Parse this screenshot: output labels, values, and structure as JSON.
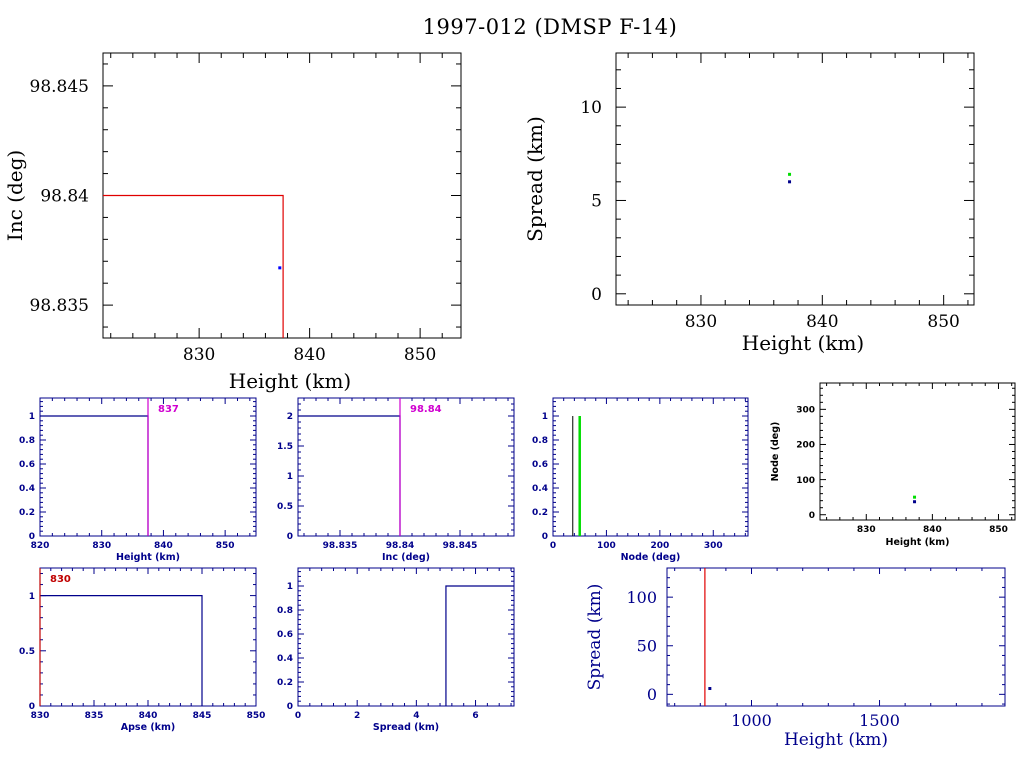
{
  "title": "1997-012 (DMSP F-14)",
  "colors": {
    "black": "#000000",
    "navy": "#00008b",
    "red": "#e00000",
    "darkred": "#c00000",
    "magenta": "#d000d0",
    "green": "#00dd00",
    "blue": "#0000ff"
  },
  "chart_data": [
    {
      "id": "p1",
      "type": "scatter",
      "xlabel": "Height (km)",
      "ylabel": "Inc (deg)",
      "xlim": [
        821.3,
        853.7
      ],
      "ylim": [
        98.8335,
        98.8465
      ],
      "xticks": [
        830,
        840,
        850
      ],
      "yticks": [
        98.835,
        98.84,
        98.845
      ],
      "yticklabels": [
        "98.835",
        "98.84",
        "98.845"
      ],
      "points": [
        {
          "x": 837.3,
          "y": 98.8367,
          "color": "blue"
        }
      ],
      "lines": [
        {
          "x": [
            821.3,
            837.6,
            837.6
          ],
          "y": [
            98.84,
            98.84,
            98.8335
          ],
          "color": "red"
        }
      ]
    },
    {
      "id": "p2",
      "type": "scatter",
      "xlabel": "Height (km)",
      "ylabel": "Spread (km)",
      "xlim": [
        823,
        852.5
      ],
      "ylim": [
        -0.6,
        12.9
      ],
      "xticks": [
        830,
        840,
        850
      ],
      "yticks": [
        0,
        5,
        10
      ],
      "points": [
        {
          "x": 837.3,
          "y": 6.4,
          "color": "green"
        },
        {
          "x": 837.3,
          "y": 6.0,
          "color": "navy"
        }
      ]
    },
    {
      "id": "p3",
      "type": "histogram",
      "xlabel": "Height (km)",
      "xlim": [
        820,
        855
      ],
      "ylim": [
        0,
        1.15
      ],
      "xticks": [
        820,
        830,
        840,
        850
      ],
      "yticks": [
        0,
        0.2,
        0.4,
        0.6,
        0.8,
        1
      ],
      "yticklabels": [
        "0",
        "0.2",
        "0.4",
        "0.6",
        "0.8",
        "1"
      ],
      "steps": [
        {
          "x": [
            820,
            837.5,
            837.5
          ],
          "y": [
            1,
            1,
            0
          ],
          "color": "navy"
        }
      ],
      "markers": [
        {
          "x": 837.5,
          "color": "magenta"
        }
      ],
      "annotation": {
        "text": "837",
        "color": "magenta"
      }
    },
    {
      "id": "p4",
      "type": "histogram",
      "xlabel": "Inc (deg)",
      "xlim": [
        98.8315,
        98.8495
      ],
      "ylim": [
        0,
        2.3
      ],
      "xticks": [
        98.835,
        98.84,
        98.845
      ],
      "yticks": [
        0,
        0.5,
        1,
        1.5,
        2
      ],
      "xticklabels": [
        "98.835",
        "98.84",
        "98.845"
      ],
      "yticklabels": [
        "0",
        "0.5",
        "1",
        "1.5",
        "2"
      ],
      "steps": [
        {
          "x": [
            98.8315,
            98.84,
            98.84
          ],
          "y": [
            2,
            2,
            0
          ],
          "color": "navy"
        }
      ],
      "markers": [
        {
          "x": 98.84,
          "color": "magenta"
        }
      ],
      "annotation": {
        "text": "98.84",
        "color": "magenta"
      }
    },
    {
      "id": "p5",
      "type": "histogram",
      "xlabel": "Node (deg)",
      "xlim": [
        0,
        365
      ],
      "ylim": [
        0,
        1.15
      ],
      "xticks": [
        0,
        100,
        200,
        300
      ],
      "yticks": [
        0,
        0.2,
        0.4,
        0.6,
        0.8,
        1
      ],
      "yticklabels": [
        "0",
        "0.2",
        "0.4",
        "0.6",
        "0.8",
        "1"
      ],
      "bars": [
        {
          "x": 37,
          "y": 1,
          "color": "black",
          "width": 1
        },
        {
          "x": 50,
          "y": 1,
          "color": "green",
          "width": 2.5
        }
      ]
    },
    {
      "id": "p6",
      "type": "scatter",
      "xlabel": "Height (km)",
      "ylabel": "Node (deg)",
      "xlim": [
        823,
        852.5
      ],
      "ylim": [
        -15,
        375
      ],
      "xticks": [
        830,
        840,
        850
      ],
      "yticks": [
        0,
        100,
        200,
        300
      ],
      "points": [
        {
          "x": 837.3,
          "y": 50,
          "color": "green"
        },
        {
          "x": 837.3,
          "y": 37,
          "color": "navy"
        }
      ]
    },
    {
      "id": "p7",
      "type": "histogram",
      "xlabel": "Apse (km)",
      "xlim": [
        830,
        850
      ],
      "ylim": [
        0,
        1.25
      ],
      "xticks": [
        830,
        835,
        840,
        845,
        850
      ],
      "yticks": [
        0,
        0.5,
        1
      ],
      "yticklabels": [
        "0",
        "0.5",
        "1"
      ],
      "steps": [
        {
          "x": [
            830,
            845,
            845
          ],
          "y": [
            1,
            1,
            0
          ],
          "color": "navy"
        }
      ],
      "markers": [
        {
          "x": 830,
          "color": "darkred"
        }
      ],
      "annotation": {
        "text": "830",
        "color": "darkred"
      }
    },
    {
      "id": "p8",
      "type": "histogram",
      "xlabel": "Spread (km)",
      "xlim": [
        0,
        7.3
      ],
      "ylim": [
        0,
        1.15
      ],
      "xticks": [
        0,
        2,
        4,
        6
      ],
      "yticks": [
        0,
        0.2,
        0.4,
        0.6,
        0.8,
        1
      ],
      "yticklabels": [
        "0",
        "0.2",
        "0.4",
        "0.6",
        "0.8",
        "1"
      ],
      "steps": [
        {
          "x": [
            5,
            5,
            7.3
          ],
          "y": [
            0,
            1,
            1
          ],
          "color": "navy"
        }
      ]
    },
    {
      "id": "p9",
      "type": "scatter",
      "xlabel": "Height (km)",
      "ylabel": "Spread (km)",
      "xlim": [
        670,
        1990
      ],
      "ylim": [
        -12,
        130
      ],
      "xticks": [
        1000,
        1500
      ],
      "yticks": [
        0,
        50,
        100
      ],
      "points": [
        {
          "x": 837.3,
          "y": 6,
          "color": "navy"
        }
      ],
      "markers": [
        {
          "x": 818,
          "color": "red"
        }
      ]
    }
  ]
}
